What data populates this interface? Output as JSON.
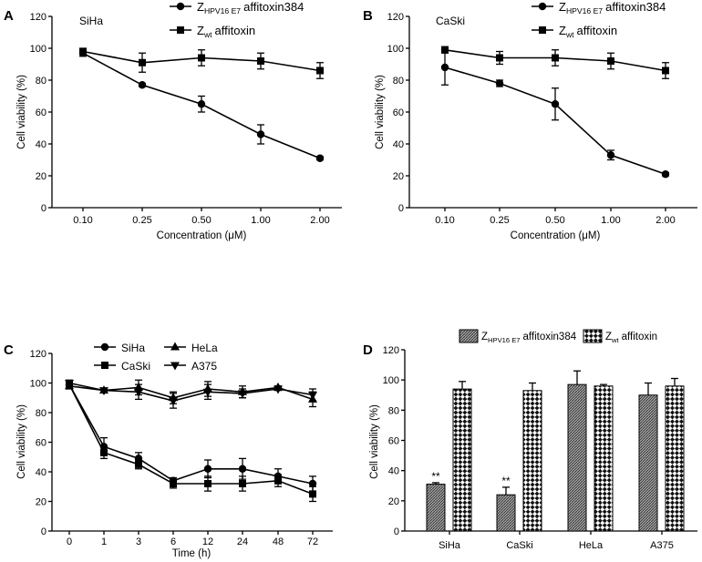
{
  "chart_data": [
    {
      "panel": "A",
      "type": "line",
      "title": "SiHa",
      "xlabel": "Concentration (μM)",
      "ylabel": "Cell viability (%)",
      "categories": [
        "0.10",
        "0.25",
        "0.50",
        "1.00",
        "2.00"
      ],
      "ylim": [
        0,
        120
      ],
      "yticks": [
        0,
        20,
        40,
        60,
        80,
        100,
        120
      ],
      "grid": false,
      "legend_position": "top",
      "series": [
        {
          "label": {
            "main": "Z",
            "sub": "HPV16 E7",
            "rest": "affitoxin384"
          },
          "marker": "circle",
          "values": [
            97,
            77,
            65,
            46,
            31
          ],
          "errors": [
            2,
            1,
            5,
            6,
            1
          ]
        },
        {
          "label": {
            "main": "Z",
            "sub": "wt",
            "rest": "affitoxin"
          },
          "marker": "square",
          "values": [
            98,
            91,
            94,
            92,
            86
          ],
          "errors": [
            2,
            6,
            5,
            5,
            5
          ]
        }
      ]
    },
    {
      "panel": "B",
      "type": "line",
      "title": "CaSki",
      "xlabel": "Concentration (μM)",
      "ylabel": "Cell viability (%)",
      "categories": [
        "0.10",
        "0.25",
        "0.50",
        "1.00",
        "2.00"
      ],
      "ylim": [
        0,
        120
      ],
      "yticks": [
        0,
        20,
        40,
        60,
        80,
        100,
        120
      ],
      "grid": false,
      "legend_position": "top",
      "series": [
        {
          "label": {
            "main": "Z",
            "sub": "HPV16 E7",
            "rest": "affitoxin384"
          },
          "marker": "circle",
          "values": [
            88,
            78,
            65,
            33,
            21
          ],
          "errors": [
            11,
            2,
            10,
            3,
            1
          ]
        },
        {
          "label": {
            "main": "Z",
            "sub": "wt",
            "rest": "affitoxin"
          },
          "marker": "square",
          "values": [
            99,
            94,
            94,
            92,
            86
          ],
          "errors": [
            2,
            4,
            5,
            5,
            5
          ]
        }
      ]
    },
    {
      "panel": "C",
      "type": "line",
      "xlabel": "Time (h)",
      "ylabel": "Cell viability (%)",
      "categories": [
        "0",
        "1",
        "3",
        "6",
        "12",
        "24",
        "48",
        "72"
      ],
      "ylim": [
        0,
        120
      ],
      "yticks": [
        0,
        20,
        40,
        60,
        80,
        100,
        120
      ],
      "grid": false,
      "legend_position": "top-left",
      "series": [
        {
          "label": {
            "main": "SiHa"
          },
          "marker": "circle",
          "values": [
            99,
            57,
            49,
            34,
            42,
            42,
            37,
            32
          ],
          "errors": [
            2,
            6,
            4,
            2,
            6,
            7,
            5,
            5
          ]
        },
        {
          "label": {
            "main": "CaSki"
          },
          "marker": "square",
          "values": [
            99,
            53,
            45,
            32,
            32,
            32,
            34,
            25
          ],
          "errors": [
            2,
            4,
            3,
            3,
            5,
            5,
            4,
            5
          ]
        },
        {
          "label": {
            "main": "HeLa"
          },
          "marker": "triangle-up",
          "values": [
            98,
            95,
            97,
            90,
            96,
            94,
            97,
            89
          ],
          "errors": [
            2,
            1,
            5,
            4,
            5,
            4,
            1,
            5
          ]
        },
        {
          "label": {
            "main": "A375"
          },
          "marker": "triangle-down",
          "values": [
            100,
            95,
            94,
            88,
            94,
            93,
            96,
            92
          ],
          "errors": [
            2,
            1,
            5,
            5,
            5,
            3,
            1,
            4
          ]
        }
      ]
    },
    {
      "panel": "D",
      "type": "bar",
      "ylabel": "Cell viability (%)",
      "categories": [
        "SiHa",
        "CaSki",
        "HeLa",
        "A375"
      ],
      "ylim": [
        0,
        120
      ],
      "yticks": [
        0,
        20,
        40,
        60,
        80,
        100,
        120
      ],
      "grid": false,
      "legend_position": "top",
      "series": [
        {
          "label": {
            "main": "Z",
            "sub": "HPV16 E7",
            "rest": "affitoxin384"
          },
          "fill_style": "dense-hatch",
          "values": [
            31,
            24,
            97,
            90
          ],
          "errors": [
            1,
            5,
            9,
            8
          ]
        },
        {
          "label": {
            "main": "Z",
            "sub": "wt",
            "rest": "affitoxin"
          },
          "fill_style": "checkerboard",
          "values": [
            94,
            93,
            96,
            96
          ],
          "errors": [
            5,
            5,
            1,
            5
          ]
        }
      ],
      "annotations": [
        {
          "category": "SiHa",
          "series": 0,
          "text": "**"
        },
        {
          "category": "CaSki",
          "series": 0,
          "text": "**"
        }
      ]
    }
  ]
}
